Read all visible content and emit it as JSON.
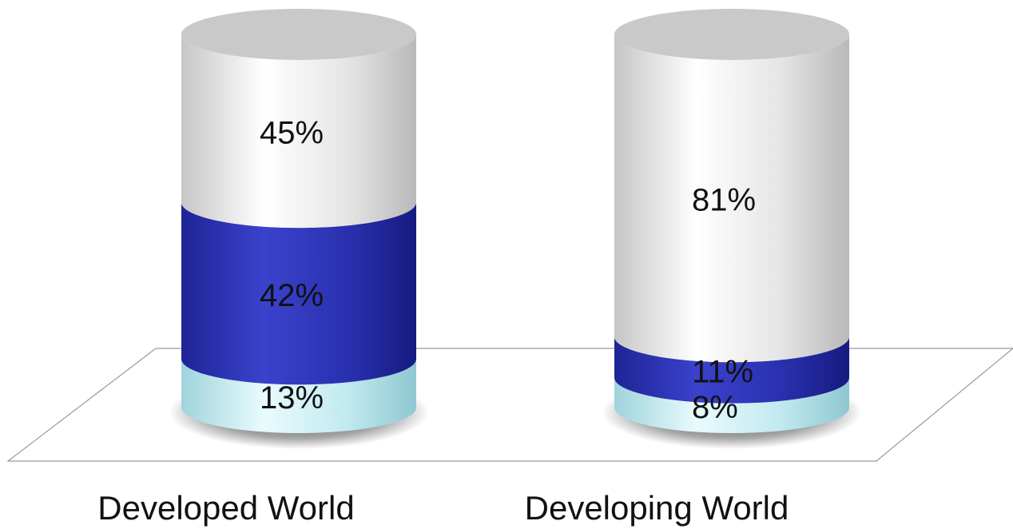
{
  "chart_data": {
    "type": "bar",
    "stacked": true,
    "percent": true,
    "title": "",
    "xlabel": "",
    "ylabel": "",
    "ylim": [
      0,
      100
    ],
    "categories": [
      "Developed World",
      "Developing World"
    ],
    "series": [
      {
        "values": [
          13,
          8
        ],
        "labels": [
          "13%",
          "8%"
        ],
        "color": "#b8e6ec"
      },
      {
        "values": [
          42,
          11
        ],
        "labels": [
          "42%",
          "11%"
        ],
        "color": "#2f36b8"
      },
      {
        "values": [
          45,
          81
        ],
        "labels": [
          "45%",
          "81%"
        ],
        "color": "#e4e4e4"
      }
    ],
    "grid": false,
    "legend": "none"
  }
}
